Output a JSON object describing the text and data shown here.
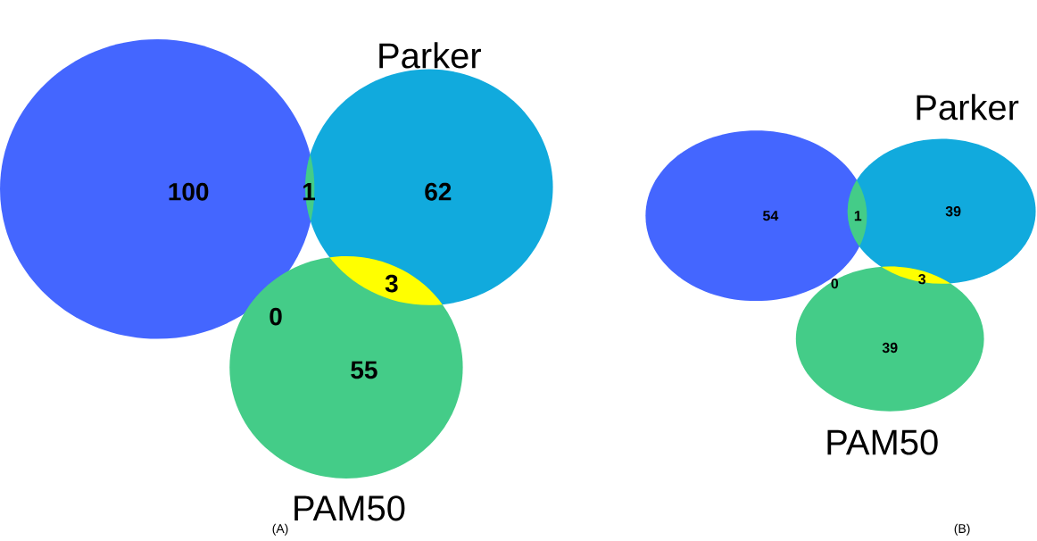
{
  "chart_data": [
    {
      "type": "other",
      "categories": [
        null,
        "Parker",
        "PAM50"
      ],
      "values": [
        100,
        62,
        55
      ],
      "colors": [
        "#4466ff",
        "#11aadd",
        "#44cc88"
      ],
      "data_labels": true,
      "annotations": [
        "1",
        "3",
        "0"
      ],
      "xlabel": "(A)"
    },
    {
      "type": "other",
      "categories": [
        null,
        "Parker",
        "PAM50"
      ],
      "values": [
        54,
        39,
        39
      ],
      "colors": [
        "#4466ff",
        "#11aadd",
        "#44cc88"
      ],
      "data_labels": true,
      "annotations": [
        "1",
        "3",
        "0"
      ],
      "xlabel": "(B)"
    }
  ]
}
